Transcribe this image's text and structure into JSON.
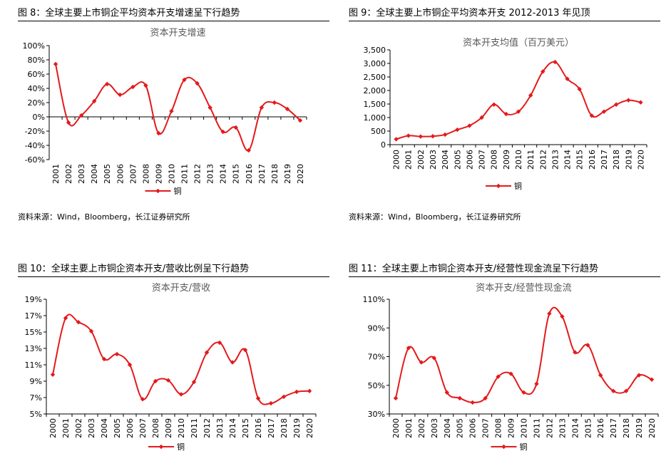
{
  "chart_data": [
    {
      "type": "line",
      "figure_label": "图  8：",
      "heading": "全球主要上市铜企平均资本开支增速呈下行趋势",
      "title": "资本开支增速",
      "x": [
        "2001",
        "2002",
        "2003",
        "2004",
        "2005",
        "2006",
        "2007",
        "2008",
        "2009",
        "2010",
        "2011",
        "2012",
        "2013",
        "2014",
        "2015",
        "2016",
        "2017",
        "2018",
        "2019",
        "2020"
      ],
      "series": [
        {
          "name": "铜",
          "color": "#e31a1c",
          "values": [
            74,
            -8,
            2,
            22,
            46,
            31,
            42,
            44,
            -23,
            8,
            52,
            47,
            13,
            -21,
            -15,
            -47,
            13,
            20,
            11,
            -5
          ]
        }
      ],
      "ylim": [
        -60,
        100
      ],
      "yticks": [
        "-60%",
        "-40%",
        "-20%",
        "0%",
        "20%",
        "40%",
        "60%",
        "80%",
        "100%"
      ],
      "y_axis_at_zero": true,
      "grid": false,
      "legend": "bottom",
      "source": "资料来源：Wind，Bloomberg，长江证券研究所"
    },
    {
      "type": "line",
      "figure_label": "图  9：",
      "heading": "全球主要上市铜企平均资本开支 2012-2013 年见顶",
      "title": "资本开支均值（百万美元）",
      "x": [
        "2000",
        "2001",
        "2002",
        "2003",
        "2004",
        "2005",
        "2006",
        "2007",
        "2008",
        "2009",
        "2010",
        "2011",
        "2012",
        "2013",
        "2014",
        "2015",
        "2016",
        "2017",
        "2018",
        "2019",
        "2020"
      ],
      "series": [
        {
          "name": "铜",
          "color": "#e31a1c",
          "values": [
            200,
            330,
            300,
            310,
            370,
            550,
            700,
            1000,
            1480,
            1130,
            1220,
            1820,
            2700,
            3050,
            2430,
            2050,
            1070,
            1220,
            1480,
            1640,
            1560
          ]
        }
      ],
      "ylim": [
        0,
        3500
      ],
      "yticks": [
        "0",
        "500",
        "1,000",
        "1,500",
        "2,000",
        "2,500",
        "3,000",
        "3,500"
      ],
      "grid": false,
      "legend": "bottom",
      "source": "资料来源：Wind，Bloomberg，长江证券研究所"
    },
    {
      "type": "line",
      "figure_label": "图  10：",
      "heading": "全球主要上市铜企资本开支/营收比例呈下行趋势",
      "title": "资本开支/营收",
      "x": [
        "2000",
        "2001",
        "2002",
        "2003",
        "2004",
        "2005",
        "2006",
        "2007",
        "2008",
        "2009",
        "2010",
        "2011",
        "2012",
        "2013",
        "2014",
        "2015",
        "2016",
        "2017",
        "2018",
        "2019",
        "2020"
      ],
      "series": [
        {
          "name": "铜",
          "color": "#e31a1c",
          "values": [
            9.8,
            16.7,
            16.2,
            15.1,
            11.7,
            12.3,
            11.0,
            6.8,
            9.0,
            9.1,
            7.4,
            8.9,
            12.5,
            13.7,
            11.3,
            12.8,
            6.9,
            6.3,
            7.1,
            7.7,
            7.8
          ]
        }
      ],
      "ylim": [
        5,
        19
      ],
      "yticks": [
        "5%",
        "7%",
        "9%",
        "11%",
        "13%",
        "15%",
        "17%",
        "19%"
      ],
      "grid": false,
      "legend": "bottom"
    },
    {
      "type": "line",
      "figure_label": "图  11：",
      "heading": "全球主要上市铜企资本开支/经营性现金流呈下行趋势",
      "title": "资本开支/经营性现金流",
      "x": [
        "2000",
        "2001",
        "2002",
        "2003",
        "2004",
        "2005",
        "2006",
        "2007",
        "2008",
        "2009",
        "2010",
        "2011",
        "2012",
        "2013",
        "2014",
        "2015",
        "2016",
        "2017",
        "2018",
        "2019",
        "2020"
      ],
      "series": [
        {
          "name": "铜",
          "color": "#e31a1c",
          "values": [
            41,
            76,
            66,
            69,
            45,
            41,
            38,
            41,
            56,
            58,
            45,
            51,
            100,
            98,
            73,
            78,
            57,
            46,
            46,
            57,
            54
          ]
        }
      ],
      "ylim": [
        30,
        110
      ],
      "yticks": [
        "30%",
        "50%",
        "70%",
        "90%",
        "110%"
      ],
      "grid": false,
      "legend": "bottom"
    }
  ]
}
